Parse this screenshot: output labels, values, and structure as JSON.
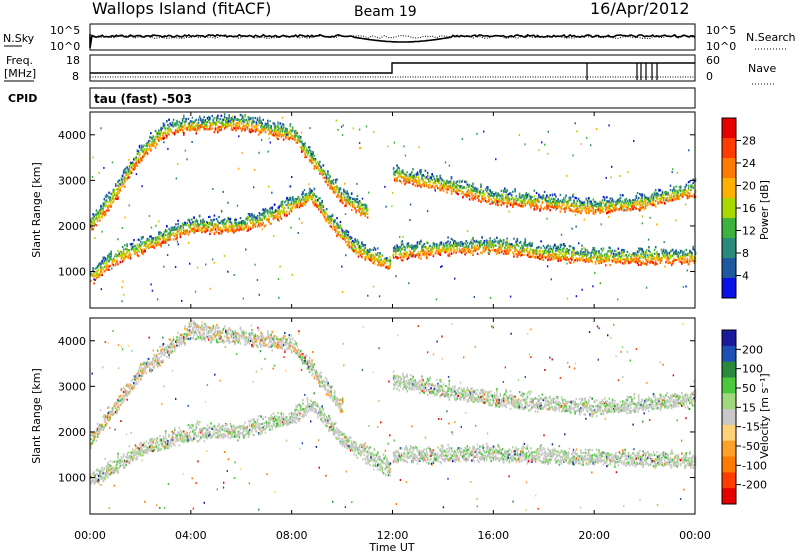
{
  "header": {
    "station": "Wallops Island (fitACF)",
    "beam": "Beam 19",
    "date": "16/Apr/2012"
  },
  "status_panel": {
    "nsky_label": "N.Sky",
    "nsky_tick_top": "10^5",
    "nsky_tick_bottom": "10^0",
    "nsearch_label": "N.Search",
    "nsearch_tick_top": "10^5",
    "nsearch_tick_bottom": "10^0",
    "freq_label_1": "Freq.",
    "freq_label_2": "[MHz]",
    "freq_tick_top": "18",
    "freq_tick_bottom": "8",
    "nave_label": "Nave",
    "nave_tick_top": "60",
    "nave_tick_bottom": "0",
    "cpid_label": "CPID",
    "cpid_value": "tau (fast) -503"
  },
  "colorbars": {
    "power": {
      "label": "Power [dB]",
      "ticks": [
        "28",
        "24",
        "20",
        "16",
        "12",
        "8",
        "4"
      ],
      "colors": [
        "#e60000",
        "#ff3c00",
        "#ff7a00",
        "#ffb000",
        "#a8d800",
        "#3cb33c",
        "#2a8a7a",
        "#1e5aa0",
        "#0a10e6"
      ]
    },
    "velocity": {
      "label": "Velocity [m s⁻¹]",
      "ticks": [
        "200",
        "100",
        "50",
        "15",
        "-15",
        "-50",
        "-100",
        "-200"
      ],
      "colors": [
        "#1a1a9a",
        "#1e50b4",
        "#2a8a3c",
        "#4cc83c",
        "#a0d880",
        "#c8c8c8",
        "#ffd27a",
        "#ffa028",
        "#ff7a00",
        "#ff3c00",
        "#e60000"
      ]
    }
  },
  "axes": {
    "ylabel": "Slant Range [km]",
    "xlabel": "Time UT",
    "x_ticks": [
      "00:00",
      "04:00",
      "08:00",
      "12:00",
      "16:00",
      "20:00",
      "00:00"
    ],
    "y_ticks": [
      "1000",
      "2000",
      "3000",
      "4000"
    ]
  },
  "chart_data": [
    {
      "type": "heatmap",
      "title": "",
      "quantity": "Power",
      "units": "dB",
      "xlabel": "Time UT",
      "ylabel": "Slant Range [km]",
      "xlim_hours": [
        0,
        24
      ],
      "ylim_km": [
        200,
        4500
      ],
      "grid": false,
      "bands": [
        {
          "points_hours_km": [
            [
              0,
              850
            ],
            [
              1,
              1300
            ],
            [
              3,
              1750
            ],
            [
              4,
              1980
            ],
            [
              6,
              2000
            ],
            [
              7,
              2150
            ],
            [
              8,
              2450
            ],
            [
              8.8,
              2650
            ],
            [
              9.5,
              2100
            ],
            [
              10.5,
              1500
            ],
            [
              11.9,
              1150
            ]
          ],
          "dominant_db": "20-28"
        },
        {
          "points_hours_km": [
            [
              12,
              1400
            ],
            [
              14,
              1500
            ],
            [
              16,
              1550
            ],
            [
              18,
              1400
            ],
            [
              20,
              1300
            ],
            [
              22,
              1300
            ],
            [
              24,
              1300
            ]
          ],
          "dominant_db": "12-28"
        },
        {
          "points_hours_km": [
            [
              0,
              2000
            ],
            [
              1,
              2700
            ],
            [
              2,
              3600
            ],
            [
              3,
              4100
            ],
            [
              4,
              4200
            ],
            [
              6,
              4250
            ],
            [
              8,
              4000
            ],
            [
              9,
              3300
            ],
            [
              10,
              2600
            ],
            [
              11,
              2300
            ]
          ],
          "dominant_db": "8-24"
        },
        {
          "points_hours_km": [
            [
              12,
              3100
            ],
            [
              14,
              2900
            ],
            [
              16,
              2600
            ],
            [
              18,
              2500
            ],
            [
              20,
              2400
            ],
            [
              22,
              2500
            ],
            [
              24,
              2800
            ]
          ],
          "dominant_db": "12-28"
        }
      ]
    },
    {
      "type": "heatmap",
      "title": "",
      "quantity": "Velocity",
      "units": "m s^-1",
      "xlabel": "Time UT",
      "ylabel": "Slant Range [km]",
      "xlim_hours": [
        0,
        24
      ],
      "ylim_km": [
        200,
        4500
      ],
      "grid": false,
      "bands": [
        {
          "points_hours_km": [
            [
              0,
              900
            ],
            [
              2,
              1600
            ],
            [
              4,
              1950
            ],
            [
              6,
              2000
            ],
            [
              8,
              2300
            ],
            [
              8.8,
              2600
            ],
            [
              10,
              1800
            ],
            [
              11.9,
              1150
            ]
          ],
          "dominant_ms": "-15 to 15"
        },
        {
          "points_hours_km": [
            [
              12,
              1450
            ],
            [
              16,
              1500
            ],
            [
              20,
              1400
            ],
            [
              24,
              1350
            ]
          ],
          "dominant_ms": "-15 to 15"
        },
        {
          "points_hours_km": [
            [
              0,
              1800
            ],
            [
              2,
              3300
            ],
            [
              4,
              4200
            ],
            [
              8,
              3900
            ],
            [
              10,
              2500
            ]
          ],
          "dominant_ms": "-50 to 50"
        },
        {
          "points_hours_km": [
            [
              12,
              3100
            ],
            [
              16,
              2700
            ],
            [
              20,
              2500
            ],
            [
              24,
              2700
            ]
          ],
          "dominant_ms": "-15 to 15"
        }
      ]
    }
  ]
}
